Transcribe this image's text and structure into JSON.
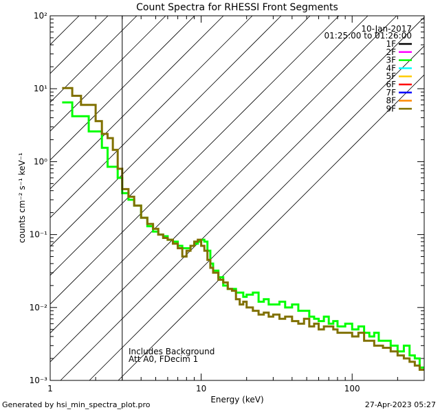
{
  "chart_data": {
    "type": "line",
    "title": "Count Spectra for RHESSI Front Segments",
    "xlabel": "Energy (keV)",
    "ylabel": "counts cm⁻² s⁻¹ keV⁻¹",
    "xscale": "log",
    "yscale": "log",
    "xlim": [
      1,
      300
    ],
    "ylim": [
      0.001,
      100
    ],
    "x_ticks": [
      {
        "value": 1,
        "label": "1"
      },
      {
        "value": 10,
        "label": "10"
      },
      {
        "value": 100,
        "label": "100"
      }
    ],
    "y_ticks": [
      {
        "value": 0.001,
        "label": "10⁻³"
      },
      {
        "value": 0.01,
        "label": "10⁻²"
      },
      {
        "value": 0.1,
        "label": "10⁻¹"
      },
      {
        "value": 1,
        "label": "10⁰"
      },
      {
        "value": 10,
        "label": "10¹"
      },
      {
        "value": 100,
        "label": "10²"
      }
    ],
    "hatched_region": {
      "x_from": 1,
      "x_to": 3
    },
    "date": "10-Jan-2017",
    "time_range": "01:25:00 to 01:26:00",
    "notes": [
      "Includes Background",
      "Att A0, FDecim 1"
    ],
    "legend": [
      {
        "name": "1F",
        "color": "#000000"
      },
      {
        "name": "2F",
        "color": "#ff00ff"
      },
      {
        "name": "3F",
        "color": "#00ff00"
      },
      {
        "name": "4F",
        "color": "#00ffff"
      },
      {
        "name": "5F",
        "color": "#ffcc00"
      },
      {
        "name": "6F",
        "color": "#ff0000"
      },
      {
        "name": "7F",
        "color": "#0000ff"
      },
      {
        "name": "8F",
        "color": "#ff8800"
      },
      {
        "name": "9F",
        "color": "#807000"
      }
    ],
    "series": [
      {
        "name": "3F",
        "color": "#00ff00",
        "edges": [
          1.2,
          1.4,
          1.6,
          1.8,
          2.0,
          2.2,
          2.4,
          2.6,
          2.8,
          3.0,
          3.3,
          3.6,
          4.0,
          4.4,
          4.8,
          5.2,
          5.6,
          6.0,
          6.5,
          7.0,
          7.5,
          8.0,
          8.5,
          9.0,
          9.5,
          10.0,
          10.5,
          11.0,
          11.5,
          12.0,
          13.0,
          14.0,
          15.0,
          16.0,
          17.0,
          18.0,
          19.0,
          20.0,
          22.0,
          24.0,
          26.0,
          28.0,
          30.0,
          33.0,
          36.0,
          40.0,
          44.0,
          48.0,
          52.0,
          56.0,
          60.0,
          65.0,
          70.0,
          75.0,
          80.0,
          90.0,
          100.0,
          110.0,
          120.0,
          130.0,
          140.0,
          150.0,
          160.0,
          180.0,
          200.0,
          220.0,
          240.0,
          260.0,
          280.0,
          300.0
        ],
        "values": [
          6.5,
          4.2,
          4.2,
          2.6,
          2.6,
          1.55,
          0.85,
          0.85,
          0.6,
          0.37,
          0.3,
          0.25,
          0.17,
          0.13,
          0.11,
          0.1,
          0.095,
          0.085,
          0.08,
          0.07,
          0.065,
          0.065,
          0.07,
          0.075,
          0.08,
          0.085,
          0.08,
          0.06,
          0.04,
          0.032,
          0.026,
          0.02,
          0.018,
          0.018,
          0.016,
          0.016,
          0.014,
          0.015,
          0.016,
          0.012,
          0.013,
          0.011,
          0.011,
          0.012,
          0.01,
          0.011,
          0.009,
          0.009,
          0.0075,
          0.007,
          0.0065,
          0.0075,
          0.006,
          0.0065,
          0.0055,
          0.006,
          0.005,
          0.0055,
          0.0045,
          0.004,
          0.0045,
          0.0035,
          0.0035,
          0.003,
          0.0025,
          0.003,
          0.0022,
          0.002,
          0.0015
        ]
      },
      {
        "name": "9F",
        "color": "#807000",
        "edges": [
          1.2,
          1.4,
          1.6,
          1.8,
          2.0,
          2.2,
          2.4,
          2.6,
          2.8,
          3.0,
          3.3,
          3.6,
          4.0,
          4.4,
          4.8,
          5.2,
          5.6,
          6.0,
          6.5,
          7.0,
          7.5,
          8.0,
          8.5,
          9.0,
          9.5,
          10.0,
          10.5,
          11.0,
          11.5,
          12.0,
          13.0,
          14.0,
          15.0,
          16.0,
          17.0,
          18.0,
          19.0,
          20.0,
          22.0,
          24.0,
          26.0,
          28.0,
          30.0,
          33.0,
          36.0,
          40.0,
          44.0,
          48.0,
          52.0,
          56.0,
          60.0,
          65.0,
          70.0,
          75.0,
          80.0,
          90.0,
          100.0,
          110.0,
          120.0,
          130.0,
          140.0,
          150.0,
          160.0,
          180.0,
          200.0,
          220.0,
          240.0,
          260.0,
          280.0,
          300.0
        ],
        "values": [
          10.2,
          8.0,
          6.0,
          6.0,
          3.6,
          2.4,
          2.1,
          1.45,
          0.8,
          0.42,
          0.33,
          0.25,
          0.17,
          0.14,
          0.12,
          0.1,
          0.09,
          0.085,
          0.075,
          0.065,
          0.05,
          0.06,
          0.07,
          0.08,
          0.085,
          0.07,
          0.06,
          0.045,
          0.035,
          0.03,
          0.024,
          0.022,
          0.018,
          0.017,
          0.013,
          0.011,
          0.012,
          0.01,
          0.009,
          0.008,
          0.0085,
          0.0075,
          0.008,
          0.007,
          0.0075,
          0.0065,
          0.006,
          0.007,
          0.0055,
          0.006,
          0.005,
          0.0055,
          0.0055,
          0.005,
          0.0045,
          0.0045,
          0.004,
          0.0045,
          0.0035,
          0.0035,
          0.003,
          0.003,
          0.0028,
          0.0025,
          0.0022,
          0.002,
          0.0018,
          0.0016,
          0.0014
        ]
      }
    ]
  },
  "footer": {
    "generated": "Generated by hsi_min_spectra_plot.pro",
    "timestamp": "27-Apr-2023 05:27"
  }
}
